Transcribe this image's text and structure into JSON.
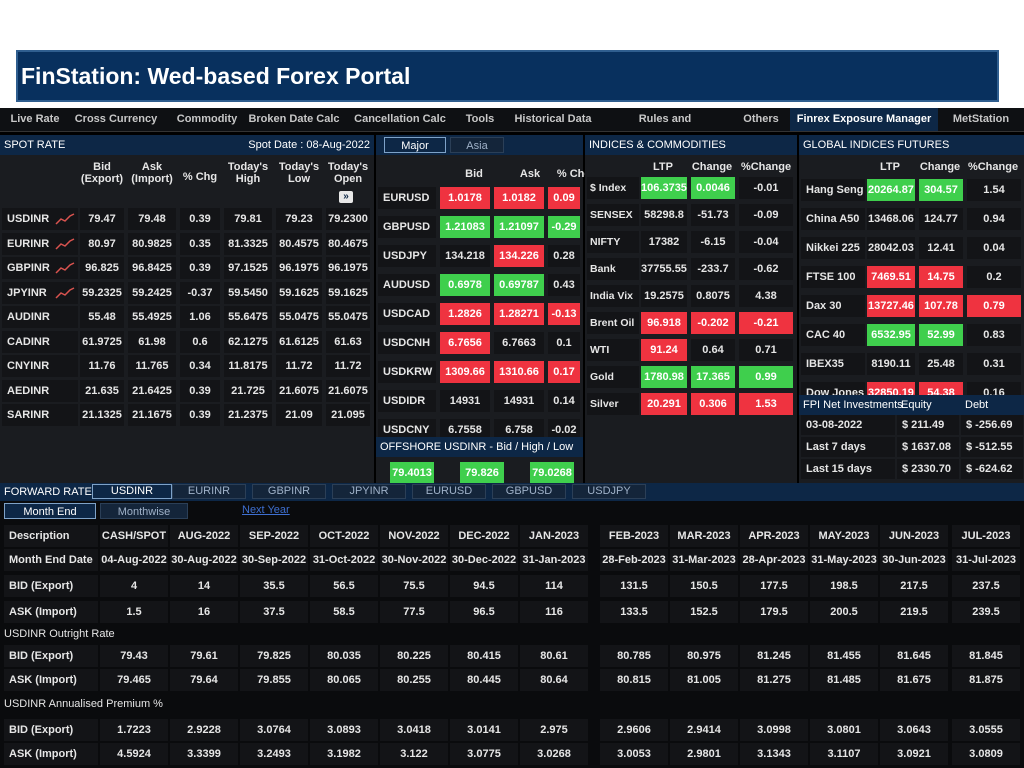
{
  "slide_title": "FinStation: Wed-based Forex Portal",
  "menu": {
    "items": [
      "Live Rate",
      "Cross Currency",
      "Commodity",
      "Broken Date Calc",
      "Cancellation Calc",
      "Tools",
      "Historical Data",
      "Rules and Regulations",
      "Others",
      "Finrex Exposure Manager",
      "MetStation"
    ],
    "selected": "Finrex Exposure Manager"
  },
  "spot": {
    "title": "SPOT RATE",
    "date": "Spot Date : 08-Aug-2022",
    "headers": {
      "bid": "Bid (Export)",
      "ask": "Ask (Import)",
      "chg": "% Chg",
      "high": "Today's High",
      "low": "Today's Low",
      "open": "Today's Open"
    },
    "rows": [
      {
        "pair": "USDINR",
        "bid": "79.47",
        "ask": "79.48",
        "chg": "0.39",
        "high": "79.81",
        "low": "79.23",
        "open": "79.2300"
      },
      {
        "pair": "EURINR",
        "bid": "80.97",
        "ask": "80.9825",
        "chg": "0.35",
        "high": "81.3325",
        "low": "80.4575",
        "open": "80.4675"
      },
      {
        "pair": "GBPINR",
        "bid": "96.825",
        "ask": "96.8425",
        "chg": "0.39",
        "high": "97.1525",
        "low": "96.1975",
        "open": "96.1975"
      },
      {
        "pair": "JPYINR",
        "bid": "59.2325",
        "ask": "59.2425",
        "chg": "-0.37",
        "high": "59.5450",
        "low": "59.1625",
        "open": "59.1625"
      },
      {
        "pair": "AUDINR",
        "bid": "55.48",
        "ask": "55.4925",
        "chg": "1.06",
        "high": "55.6475",
        "low": "55.0475",
        "open": "55.0475"
      },
      {
        "pair": "CADINR",
        "bid": "61.9725",
        "ask": "61.98",
        "chg": "0.6",
        "high": "62.1275",
        "low": "61.6125",
        "open": "61.63"
      },
      {
        "pair": "CNYINR",
        "bid": "11.76",
        "ask": "11.765",
        "chg": "0.34",
        "high": "11.8175",
        "low": "11.72",
        "open": "11.72"
      },
      {
        "pair": "AEDINR",
        "bid": "21.635",
        "ask": "21.6425",
        "chg": "0.39",
        "high": "21.725",
        "low": "21.6075",
        "open": "21.6075"
      },
      {
        "pair": "SARINR",
        "bid": "21.1325",
        "ask": "21.1675",
        "chg": "0.39",
        "high": "21.2375",
        "low": "21.09",
        "open": "21.095"
      }
    ]
  },
  "major": {
    "tabs": [
      "Major",
      "Asia"
    ],
    "headers": {
      "bid": "Bid",
      "ask": "Ask",
      "chg": "% Chg"
    },
    "rows": [
      {
        "pair": "EURUSD",
        "bid": "1.0178",
        "ask": "1.0182",
        "chg": "0.09",
        "bc": "red",
        "ac": "red",
        "cc": "red"
      },
      {
        "pair": "GBPUSD",
        "bid": "1.21083",
        "ask": "1.21097",
        "chg": "-0.29",
        "bc": "grn",
        "ac": "grn",
        "cc": "grn"
      },
      {
        "pair": "USDJPY",
        "bid": "134.218",
        "ask": "134.226",
        "chg": "0.28",
        "bc": "",
        "ac": "red",
        "cc": ""
      },
      {
        "pair": "AUDUSD",
        "bid": "0.6978",
        "ask": "0.69787",
        "chg": "0.43",
        "bc": "grn",
        "ac": "grn",
        "cc": ""
      },
      {
        "pair": "USDCAD",
        "bid": "1.2826",
        "ask": "1.28271",
        "chg": "-0.13",
        "bc": "red",
        "ac": "red",
        "cc": "red"
      },
      {
        "pair": "USDCNH",
        "bid": "6.7656",
        "ask": "6.7663",
        "chg": "0.1",
        "bc": "red",
        "ac": "",
        "cc": ""
      },
      {
        "pair": "USDKRW",
        "bid": "1309.66",
        "ask": "1310.66",
        "chg": "0.17",
        "bc": "red",
        "ac": "red",
        "cc": "red"
      },
      {
        "pair": "USDIDR",
        "bid": "14931",
        "ask": "14931",
        "chg": "0.14",
        "bc": "",
        "ac": "",
        "cc": ""
      },
      {
        "pair": "USDCNY",
        "bid": "6.7558",
        "ask": "6.758",
        "chg": "-0.02",
        "bc": "",
        "ac": "",
        "cc": ""
      }
    ],
    "offshore_title": "OFFSHORE USDINR - Bid / High / Low",
    "offshore": [
      "79.4013",
      "79.826",
      "79.0268"
    ]
  },
  "indices": {
    "title": "INDICES & COMMODITIES",
    "headers": {
      "ltp": "LTP",
      "chg": "Change",
      "pct": "%Change"
    },
    "rows": [
      {
        "name": "$ Index",
        "ltp": "106.3735",
        "chg": "0.0046",
        "pct": "-0.01",
        "lc": "grn",
        "cc": "grn",
        "pc": ""
      },
      {
        "name": "SENSEX",
        "ltp": "58298.8",
        "chg": "-51.73",
        "pct": "-0.09",
        "lc": "",
        "cc": "",
        "pc": ""
      },
      {
        "name": "NIFTY",
        "ltp": "17382",
        "chg": "-6.15",
        "pct": "-0.04",
        "lc": "",
        "cc": "",
        "pc": ""
      },
      {
        "name": "Bank Nifty",
        "ltp": "37755.55",
        "chg": "-233.7",
        "pct": "-0.62",
        "lc": "",
        "cc": "",
        "pc": ""
      },
      {
        "name": "India Vix",
        "ltp": "19.2575",
        "chg": "0.8075",
        "pct": "4.38",
        "lc": "",
        "cc": "",
        "pc": ""
      },
      {
        "name": "Brent Oil",
        "ltp": "96.918",
        "chg": "-0.202",
        "pct": "-0.21",
        "lc": "red",
        "cc": "red",
        "pc": "red"
      },
      {
        "name": "WTI Crude",
        "ltp": "91.24",
        "chg": "0.64",
        "pct": "0.71",
        "lc": "red",
        "cc": "",
        "pc": ""
      },
      {
        "name": "Gold Spot",
        "ltp": "1780.98",
        "chg": "17.365",
        "pct": "0.99",
        "lc": "grn",
        "cc": "grn",
        "pc": "grn"
      },
      {
        "name": "Silver",
        "ltp": "20.291",
        "chg": "0.306",
        "pct": "1.53",
        "lc": "red",
        "cc": "red",
        "pc": "red"
      }
    ]
  },
  "global": {
    "title": "GLOBAL INDICES FUTURES",
    "headers": {
      "ltp": "LTP",
      "chg": "Change",
      "pct": "%Change"
    },
    "rows": [
      {
        "name": "Hang Seng",
        "ltp": "20264.87",
        "chg": "304.57",
        "pct": "1.54",
        "lc": "grn",
        "cc": "grn",
        "pc": ""
      },
      {
        "name": "China A50",
        "ltp": "13468.06",
        "chg": "124.77",
        "pct": "0.94",
        "lc": "",
        "cc": "",
        "pc": ""
      },
      {
        "name": "Nikkei 225",
        "ltp": "28042.03",
        "chg": "12.41",
        "pct": "0.04",
        "lc": "",
        "cc": "",
        "pc": ""
      },
      {
        "name": "FTSE 100",
        "ltp": "7469.51",
        "chg": "14.75",
        "pct": "0.2",
        "lc": "red",
        "cc": "red",
        "pc": ""
      },
      {
        "name": "Dax 30",
        "ltp": "13727.46",
        "chg": "107.78",
        "pct": "0.79",
        "lc": "red",
        "cc": "red",
        "pc": "red"
      },
      {
        "name": "CAC 40",
        "ltp": "6532.95",
        "chg": "52.99",
        "pct": "0.83",
        "lc": "grn",
        "cc": "grn",
        "pc": ""
      },
      {
        "name": "IBEX35",
        "ltp": "8190.11",
        "chg": "25.48",
        "pct": "0.31",
        "lc": "",
        "cc": "",
        "pc": ""
      },
      {
        "name": "Dow Jones",
        "ltp": "32850.19",
        "chg": "54.38",
        "pct": "0.16",
        "lc": "red",
        "cc": "red",
        "pc": ""
      }
    ],
    "fpi": {
      "title": "FPI Net Investments",
      "equity": "Equity",
      "debt": "Debt",
      "rows": [
        {
          "label": "03-08-2022",
          "equity": "$ 211.49",
          "debt": "$ -256.69"
        },
        {
          "label": "Last 7 days",
          "equity": "$ 1637.08",
          "debt": "$ -512.55"
        },
        {
          "label": "Last 15 days",
          "equity": "$ 2330.70",
          "debt": "$ -624.62"
        }
      ]
    }
  },
  "forward": {
    "title": "FORWARD RATE",
    "tabs": [
      "USDINR",
      "EURINR",
      "GBPINR",
      "JPYINR",
      "EURUSD",
      "GBPUSD",
      "USDJPY"
    ],
    "subtabs": [
      "Month End",
      "Monthwise"
    ],
    "next": "Next Year",
    "labels": {
      "desc": "Description",
      "mend": "Month End Date",
      "bid": "BID (Export)",
      "ask": "ASK (Import)"
    },
    "cols": [
      "CASH/SPOT",
      "AUG-2022",
      "SEP-2022",
      "OCT-2022",
      "NOV-2022",
      "DEC-2022",
      "JAN-2023",
      "FEB-2023",
      "MAR-2023",
      "APR-2023",
      "MAY-2023",
      "JUN-2023",
      "JUL-2023"
    ],
    "dates": [
      "04-Aug-2022",
      "30-Aug-2022",
      "30-Sep-2022",
      "31-Oct-2022",
      "30-Nov-2022",
      "30-Dec-2022",
      "31-Jan-2023",
      "28-Feb-2023",
      "31-Mar-2023",
      "28-Apr-2023",
      "31-May-2023",
      "30-Jun-2023",
      "31-Jul-2023"
    ],
    "bid": [
      "4",
      "14",
      "35.5",
      "56.5",
      "75.5",
      "94.5",
      "114",
      "131.5",
      "150.5",
      "177.5",
      "198.5",
      "217.5",
      "237.5"
    ],
    "ask": [
      "1.5",
      "16",
      "37.5",
      "58.5",
      "77.5",
      "96.5",
      "116",
      "133.5",
      "152.5",
      "179.5",
      "200.5",
      "219.5",
      "239.5"
    ],
    "outright_title": "USDINR Outright Rate",
    "out_bid": [
      "79.43",
      "79.61",
      "79.825",
      "80.035",
      "80.225",
      "80.415",
      "80.61",
      "80.785",
      "80.975",
      "81.245",
      "81.455",
      "81.645",
      "81.845"
    ],
    "out_ask": [
      "79.465",
      "79.64",
      "79.855",
      "80.065",
      "80.255",
      "80.445",
      "80.64",
      "80.815",
      "81.005",
      "81.275",
      "81.485",
      "81.675",
      "81.875"
    ],
    "premium_title": "USDINR Annualised Premium %",
    "pr_bid": [
      "1.7223",
      "2.9228",
      "3.0764",
      "3.0893",
      "3.0418",
      "3.0141",
      "2.975",
      "2.9606",
      "2.9414",
      "3.0998",
      "3.0801",
      "3.0643",
      "3.0555"
    ],
    "pr_ask": [
      "4.5924",
      "3.3399",
      "3.2493",
      "3.1982",
      "3.122",
      "3.0775",
      "3.0268",
      "3.0053",
      "2.9801",
      "3.1343",
      "3.1107",
      "3.0921",
      "3.0809"
    ]
  }
}
